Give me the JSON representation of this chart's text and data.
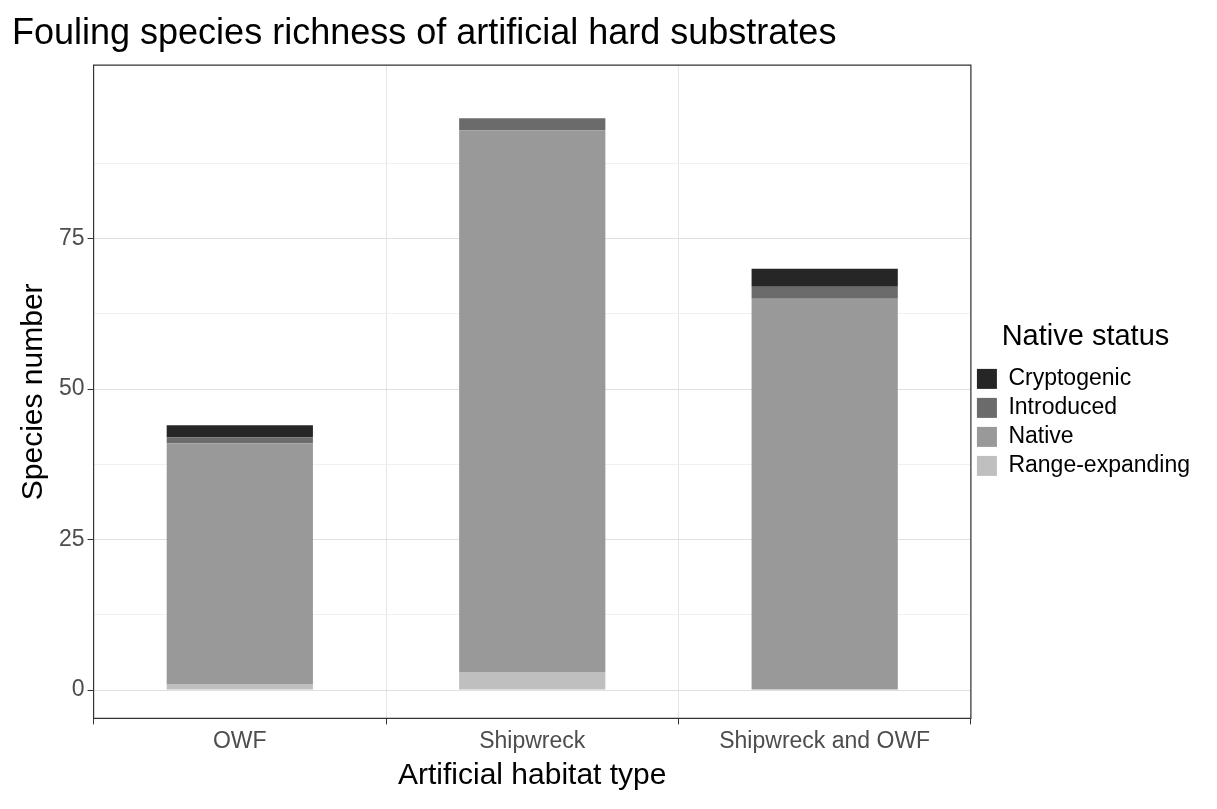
{
  "chart_data": {
    "type": "bar",
    "title": "Fouling species richness of artificial hard substrates",
    "xlabel": "Artificial habitat type",
    "ylabel": "Species number",
    "legend_title": "Native status",
    "categories": [
      "OWF",
      "Shipwreck",
      "Shipwreck and OWF"
    ],
    "stacked": true,
    "series": [
      {
        "name": "Range-expanding",
        "color": "#bfbfbf",
        "values": [
          1,
          3,
          0
        ]
      },
      {
        "name": "Native",
        "color": "#999999",
        "values": [
          40,
          90,
          65
        ]
      },
      {
        "name": "Introduced",
        "color": "#6b6b6b",
        "values": [
          1,
          2,
          2
        ]
      },
      {
        "name": "Cryptogenic",
        "color": "#262626",
        "values": [
          2,
          0,
          3
        ]
      }
    ],
    "ylim": [
      -4.7,
      103.8
    ],
    "yticks": [
      0,
      {
        "value": 12.5,
        "label": null
      },
      25,
      {
        "value": 37.5,
        "label": null
      },
      50,
      {
        "value": 62.5,
        "label": null
      },
      75,
      {
        "value": 87.5,
        "label": null
      }
    ],
    "grid": true,
    "legend": "right"
  }
}
